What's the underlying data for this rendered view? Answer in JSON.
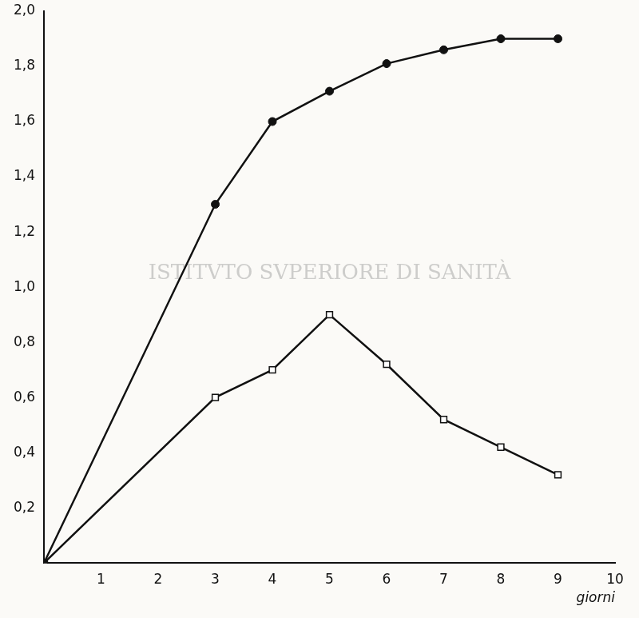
{
  "chart_data": {
    "type": "line",
    "x_label": "giorni",
    "annotations": [
      {
        "text": "ISTITVTO SVPERIORE DI SANITÀ"
      }
    ],
    "x": [
      0,
      3,
      4,
      5,
      6,
      7,
      8,
      9
    ],
    "series": [
      {
        "color": "#111111",
        "marker": "circle",
        "line_style": "solid",
        "values": [
          0,
          1.3,
          1.6,
          1.71,
          1.81,
          1.86,
          1.9,
          1.9
        ]
      },
      {
        "color": "#111111",
        "marker": "square",
        "line_style": "solid",
        "values": [
          0,
          0.6,
          0.7,
          0.9,
          0.72,
          0.52,
          0.42,
          0.32
        ]
      }
    ],
    "xlim": [
      0,
      10
    ],
    "xticks": [
      1,
      2,
      3,
      4,
      5,
      6,
      7,
      8,
      9,
      10
    ],
    "ylim": [
      0,
      2.0
    ],
    "yticks": [
      {
        "value": 0.2,
        "label": "0,2"
      },
      {
        "value": 0.4,
        "label": "0,4"
      },
      {
        "value": 0.6,
        "label": "0,6"
      },
      {
        "value": 0.8,
        "label": "0,8"
      },
      {
        "value": 1.0,
        "label": "1,0"
      },
      {
        "value": 1.2,
        "label": "1,2"
      },
      {
        "value": 1.4,
        "label": "1,4"
      },
      {
        "value": 1.6,
        "label": "1,6"
      },
      {
        "value": 1.8,
        "label": "1,8"
      },
      {
        "value": 2.0,
        "label": "2,0"
      }
    ],
    "grid": false
  }
}
